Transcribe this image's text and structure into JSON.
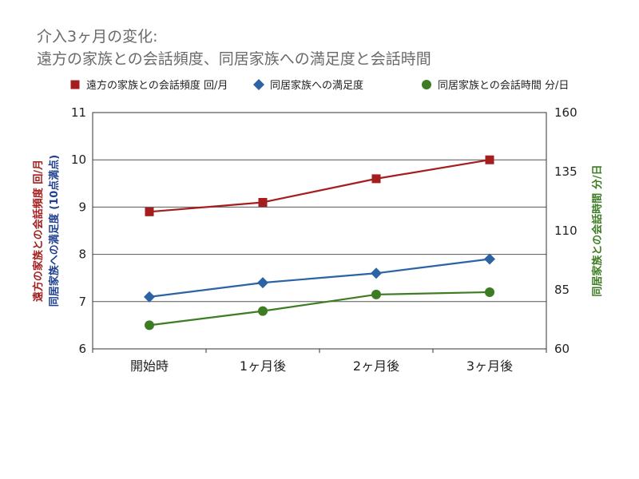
{
  "chart_data": {
    "type": "line",
    "title_lines": [
      "介入3ヶ月の変化:",
      "遠方の家族との会話頻度、同居家族への満足度と会話時間"
    ],
    "categories": [
      "開始時",
      "1ヶ月後",
      "2ヶ月後",
      "3ヶ月後"
    ],
    "series": [
      {
        "name": "遠方の家族との会話頻度 回/月",
        "axis": "left",
        "marker": "square",
        "color": "#a51d1d",
        "values": [
          8.9,
          9.1,
          9.6,
          10.0
        ]
      },
      {
        "name": "同居家族への満足度",
        "axis": "left",
        "marker": "diamond",
        "color": "#2b63a4",
        "values": [
          7.1,
          7.4,
          7.6,
          7.9
        ]
      },
      {
        "name": "同居家族との会話時間 分/日",
        "axis": "right",
        "marker": "circle",
        "color": "#3c7c22",
        "values": [
          70,
          76,
          83,
          84
        ]
      }
    ],
    "y_left": {
      "lim": [
        6,
        11
      ],
      "ticks": [
        "6",
        "7",
        "8",
        "9",
        "10",
        "11"
      ],
      "label_1": "遠方の家族との会話頻度 回/月",
      "label_1_color": "#a51d1d",
      "label_2": "同居家族への満足度 (10点満点)",
      "label_2_color": "#1f3f8f"
    },
    "y_right": {
      "lim": [
        60,
        160
      ],
      "ticks": [
        "60",
        "85",
        "110",
        "135",
        "160"
      ],
      "label": "同居家族との会話時間 分/日",
      "label_color": "#3c7c22"
    },
    "grid": true,
    "legend_position": "top"
  }
}
